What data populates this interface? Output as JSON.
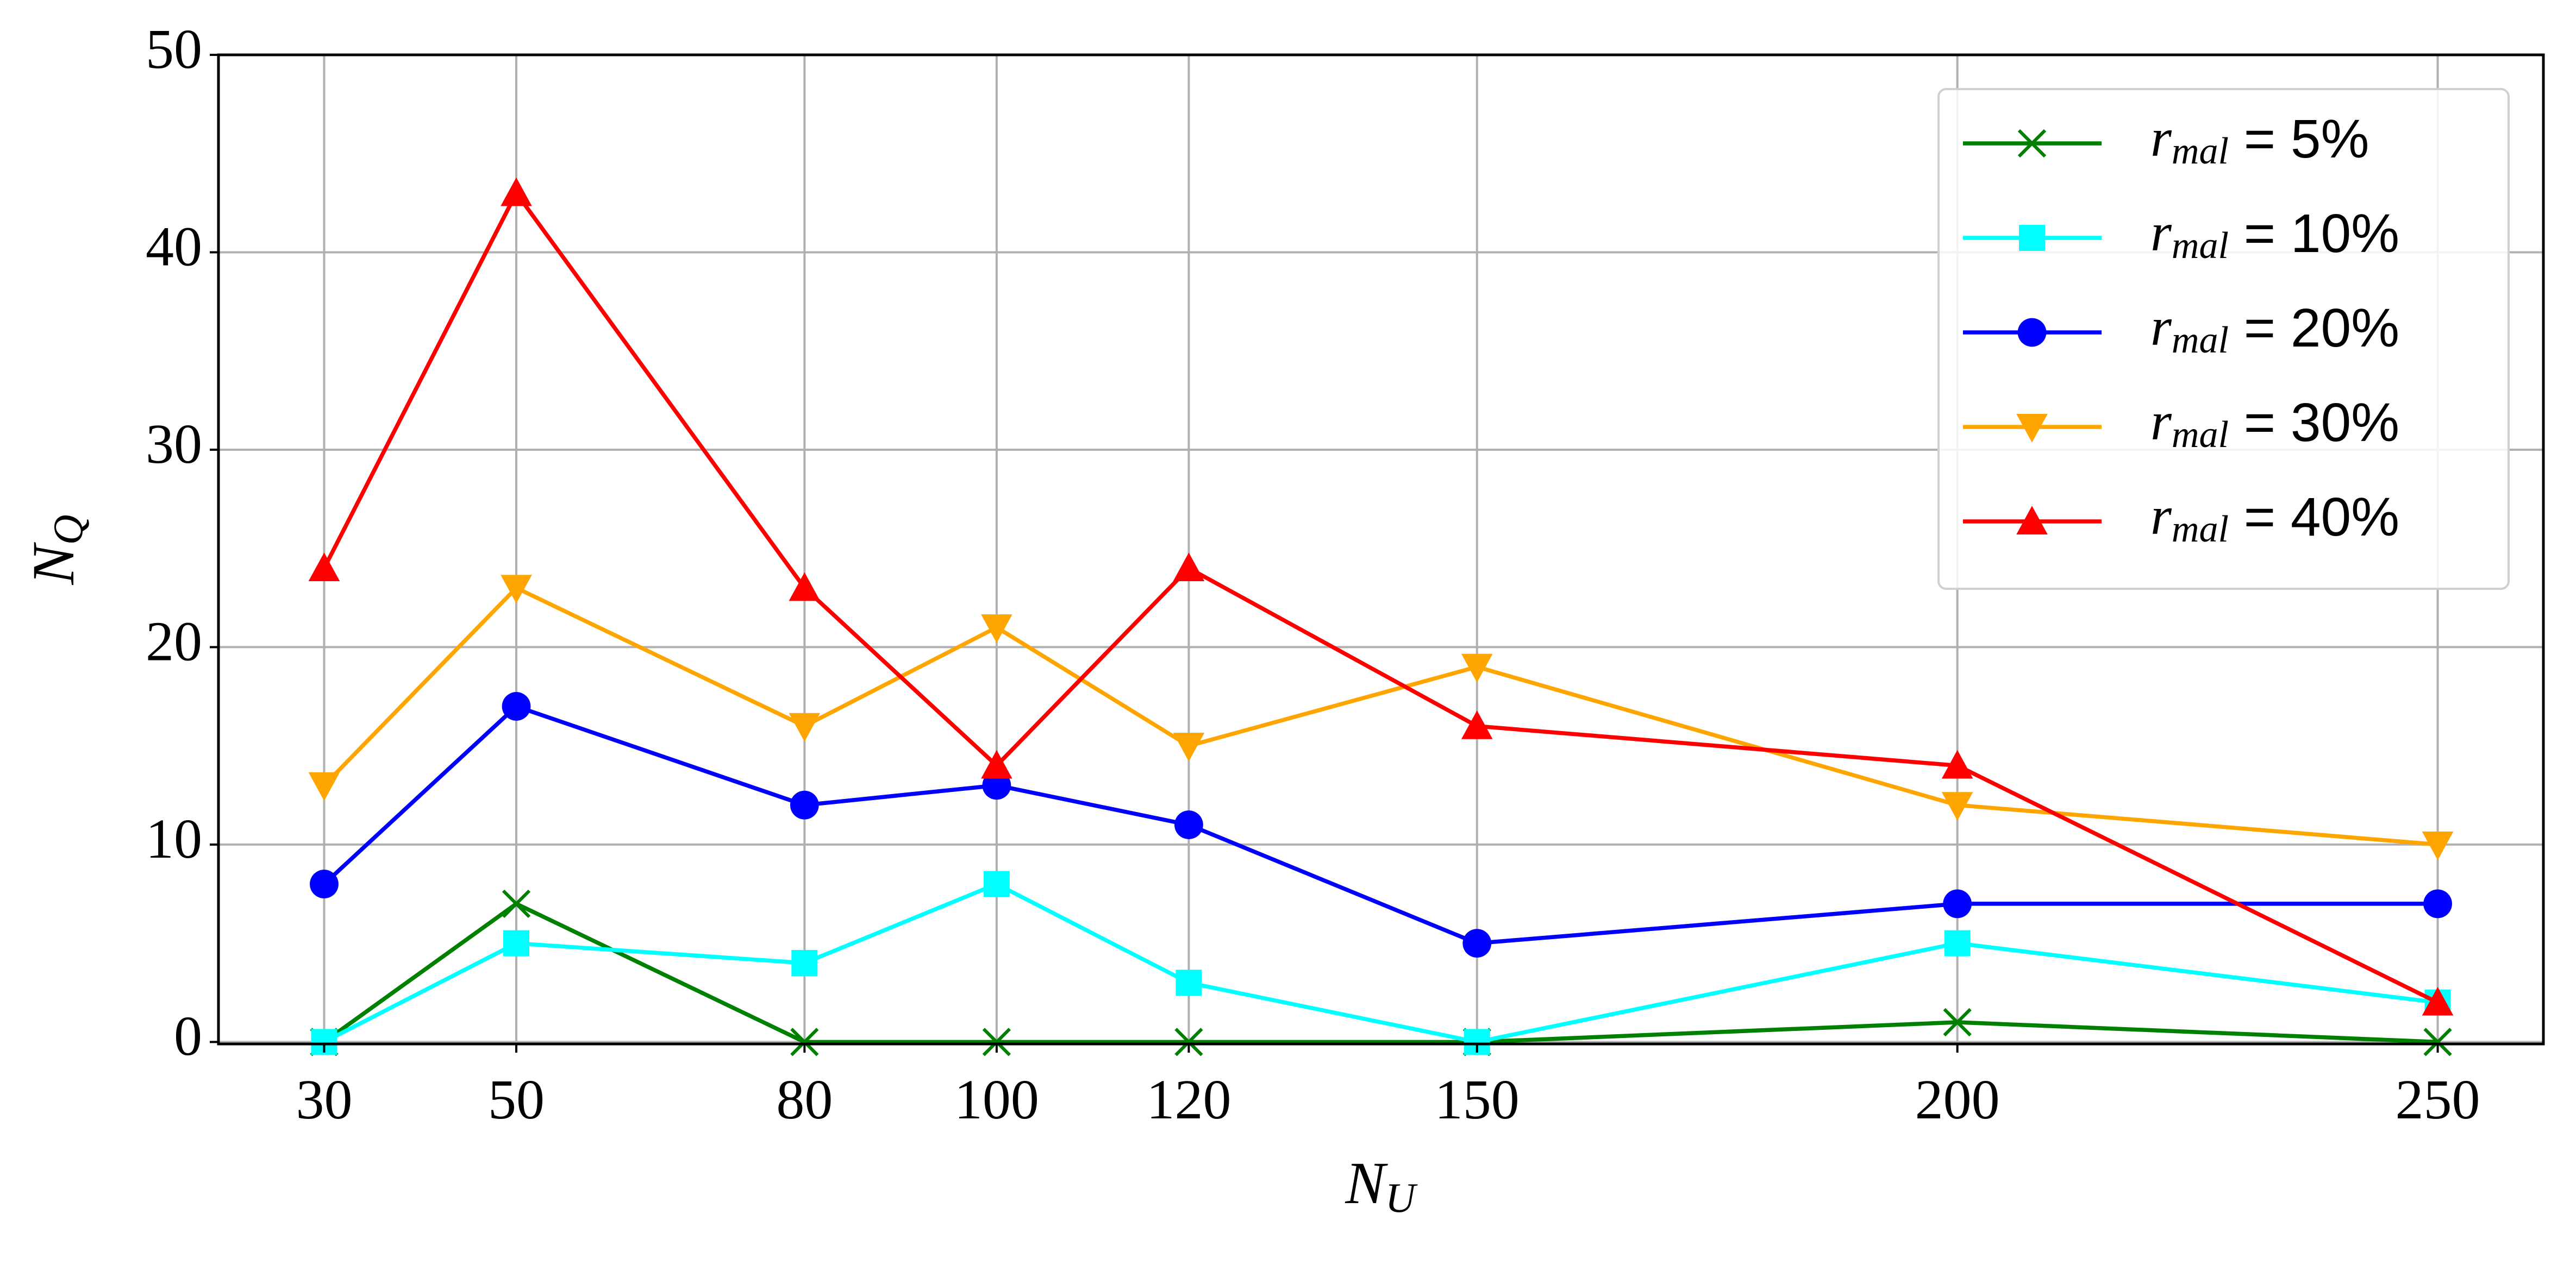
{
  "chart_data": {
    "type": "line",
    "x_label": "N_U",
    "y_label": "N_Q",
    "x": [
      30,
      50,
      80,
      100,
      120,
      150,
      200,
      250
    ],
    "series": [
      {
        "name": "r_mal = 5%",
        "color": "#008000",
        "marker": "x",
        "values": [
          0,
          7,
          0,
          0,
          0,
          0,
          1,
          0
        ]
      },
      {
        "name": "r_mal = 10%",
        "color": "#00ffff",
        "marker": "s",
        "values": [
          0,
          5,
          4,
          8,
          3,
          0,
          5,
          2
        ]
      },
      {
        "name": "r_mal = 20%",
        "color": "#0000ff",
        "marker": "o",
        "values": [
          8,
          17,
          12,
          13,
          11,
          5,
          7,
          7
        ]
      },
      {
        "name": "r_mal = 30%",
        "color": "#ffa500",
        "marker": "v",
        "values": [
          13,
          23,
          16,
          21,
          15,
          19,
          12,
          10
        ]
      },
      {
        "name": "r_mal = 40%",
        "color": "#ff0000",
        "marker": "^",
        "values": [
          24,
          43,
          23,
          14,
          24,
          16,
          14,
          2
        ]
      }
    ],
    "xlim": [
      19,
      261
    ],
    "ylim": [
      -0.1,
      50
    ],
    "xticks": [
      30,
      50,
      80,
      100,
      120,
      150,
      200,
      250
    ],
    "yticks": [
      0,
      10,
      20,
      30,
      40,
      50
    ],
    "grid": true,
    "legend_position": "upper right"
  }
}
